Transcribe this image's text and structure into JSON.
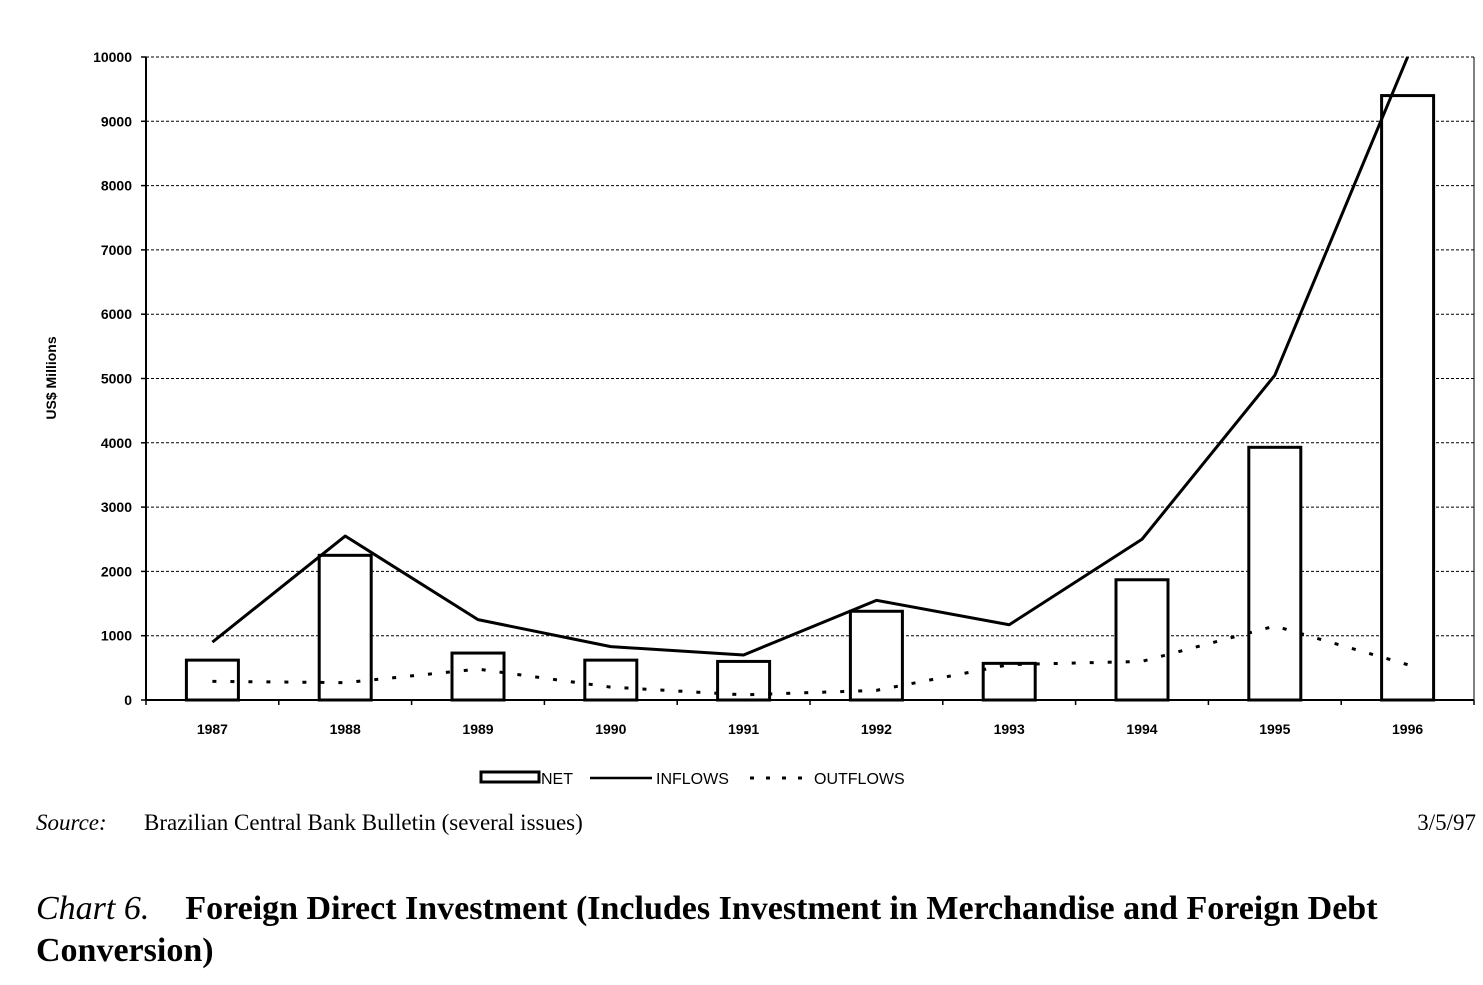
{
  "chart_data": {
    "type": "bar",
    "categories": [
      "1987",
      "1988",
      "1989",
      "1990",
      "1991",
      "1992",
      "1993",
      "1994",
      "1995",
      "1996"
    ],
    "series": [
      {
        "name": "NET",
        "type": "bar",
        "values": [
          620,
          2250,
          730,
          620,
          600,
          1380,
          570,
          1870,
          3930,
          9400
        ]
      },
      {
        "name": "INFLOWS",
        "type": "line",
        "style": "solid",
        "values": [
          900,
          2550,
          1250,
          830,
          700,
          1550,
          1170,
          2500,
          5050,
          10000
        ]
      },
      {
        "name": "OUTFLOWS",
        "type": "line",
        "style": "dashed",
        "values": [
          290,
          270,
          480,
          200,
          80,
          150,
          550,
          600,
          1150,
          550
        ]
      }
    ],
    "ylabel": "US$ Millions",
    "ylim": [
      0,
      10000
    ],
    "yticks": [
      0,
      1000,
      2000,
      3000,
      4000,
      5000,
      6000,
      7000,
      8000,
      9000,
      10000
    ],
    "grid": true,
    "legend_position": "bottom-center"
  },
  "source": {
    "label": "Source:",
    "text": "Brazilian Central Bank Bulletin (several issues)",
    "date": "3/5/97"
  },
  "caption": {
    "number": "Chart 6.",
    "title": "Foreign Direct Investment (Includes Investment in Merchandise and Foreign Debt Conversion)"
  }
}
